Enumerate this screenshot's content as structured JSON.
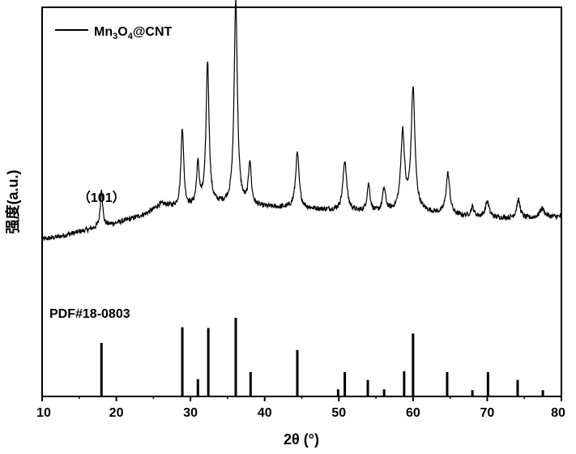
{
  "chart_data": {
    "type": "line",
    "xlabel": "2θ (°)",
    "ylabel": "强度(a.u.)",
    "ylabel_color": "#808080",
    "xlim": [
      10,
      80
    ],
    "xticks": [
      10,
      20,
      30,
      40,
      50,
      60,
      70,
      80
    ],
    "xtick_labels": [
      "10",
      "20",
      "30",
      "40",
      "50",
      "60",
      "70",
      "80"
    ],
    "grid": false,
    "legend_placement": "top-left",
    "series": [
      {
        "name_parts": [
          {
            "text": "Mn",
            "sub": false
          },
          {
            "text": "3",
            "sub": true
          },
          {
            "text": "O",
            "sub": false
          },
          {
            "text": "4",
            "sub": true
          },
          {
            "text": "@CNT",
            "sub": false
          }
        ],
        "color": "#000000",
        "baseline": [
          [
            10,
            0.13
          ],
          [
            12,
            0.14
          ],
          [
            14,
            0.155
          ],
          [
            16,
            0.17
          ],
          [
            20,
            0.2
          ],
          [
            24,
            0.235
          ],
          [
            27,
            0.26
          ],
          [
            30,
            0.265
          ],
          [
            34,
            0.28
          ],
          [
            40,
            0.27
          ],
          [
            45,
            0.265
          ],
          [
            50,
            0.255
          ],
          [
            55,
            0.245
          ],
          [
            60,
            0.255
          ],
          [
            65,
            0.235
          ],
          [
            70,
            0.225
          ],
          [
            75,
            0.22
          ],
          [
            80,
            0.23
          ]
        ],
        "peaks": [
          {
            "x": 18.0,
            "h": 0.17,
            "w": 0.18
          },
          {
            "x": 26.0,
            "h": 0.03,
            "w": 1.2
          },
          {
            "x": 28.9,
            "h": 0.35,
            "w": 0.22
          },
          {
            "x": 31.0,
            "h": 0.18,
            "w": 0.22
          },
          {
            "x": 32.3,
            "h": 0.63,
            "w": 0.24
          },
          {
            "x": 36.1,
            "h": 0.9,
            "w": 0.26
          },
          {
            "x": 38.0,
            "h": 0.19,
            "w": 0.22
          },
          {
            "x": 44.4,
            "h": 0.24,
            "w": 0.28
          },
          {
            "x": 50.8,
            "h": 0.22,
            "w": 0.3
          },
          {
            "x": 54.0,
            "h": 0.12,
            "w": 0.25
          },
          {
            "x": 56.1,
            "h": 0.1,
            "w": 0.25
          },
          {
            "x": 58.6,
            "h": 0.34,
            "w": 0.3
          },
          {
            "x": 60.0,
            "h": 0.53,
            "w": 0.3
          },
          {
            "x": 64.7,
            "h": 0.18,
            "w": 0.3
          },
          {
            "x": 68.0,
            "h": 0.04,
            "w": 0.25
          },
          {
            "x": 70.0,
            "h": 0.07,
            "w": 0.3
          },
          {
            "x": 74.2,
            "h": 0.08,
            "w": 0.3
          },
          {
            "x": 77.4,
            "h": 0.04,
            "w": 0.4
          }
        ]
      }
    ],
    "reference": {
      "label": "PDF#18-0803",
      "sticks": [
        {
          "x": 18.0,
          "i": 0.68
        },
        {
          "x": 28.9,
          "i": 0.88
        },
        {
          "x": 31.0,
          "i": 0.22
        },
        {
          "x": 32.4,
          "i": 0.87
        },
        {
          "x": 36.1,
          "i": 1.0
        },
        {
          "x": 38.1,
          "i": 0.31
        },
        {
          "x": 44.4,
          "i": 0.59
        },
        {
          "x": 49.9,
          "i": 0.09
        },
        {
          "x": 50.8,
          "i": 0.31
        },
        {
          "x": 53.9,
          "i": 0.21
        },
        {
          "x": 56.1,
          "i": 0.09
        },
        {
          "x": 58.8,
          "i": 0.32
        },
        {
          "x": 60.0,
          "i": 0.8
        },
        {
          "x": 64.6,
          "i": 0.31
        },
        {
          "x": 68.0,
          "i": 0.08
        },
        {
          "x": 70.1,
          "i": 0.31
        },
        {
          "x": 74.1,
          "i": 0.21
        },
        {
          "x": 77.5,
          "i": 0.08
        }
      ]
    },
    "annotations": [
      {
        "text": "（101）",
        "x": 18.0
      }
    ]
  }
}
